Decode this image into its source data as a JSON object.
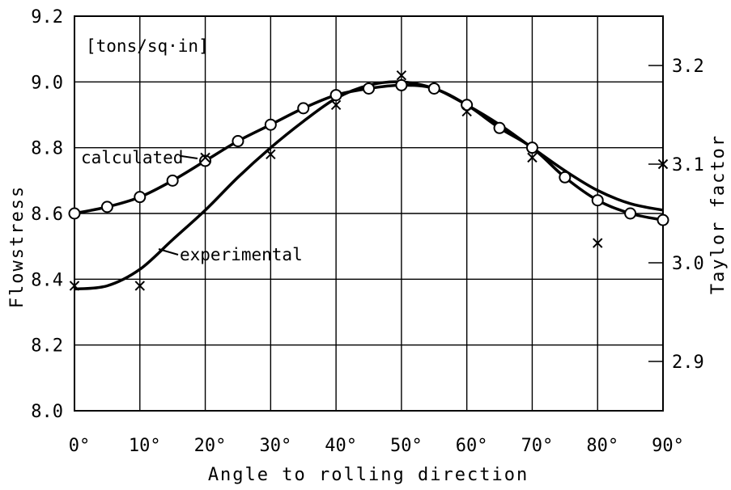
{
  "chart_data": {
    "type": "line",
    "xlabel": "Angle to rolling direction",
    "ylabel": "Flowstress",
    "y2label": "Taylor factor",
    "unit_note": "[tons/sq·in]",
    "xlim": [
      0,
      90
    ],
    "ylim": [
      8.0,
      9.2
    ],
    "y2lim": [
      2.85,
      3.25
    ],
    "x_ticks": [
      0,
      10,
      20,
      30,
      40,
      50,
      60,
      70,
      80,
      90
    ],
    "x_tick_labels": [
      "0°",
      "10°",
      "20°",
      "30°",
      "40°",
      "50°",
      "60°",
      "70°",
      "80°",
      "90°"
    ],
    "y_ticks": [
      8.0,
      8.2,
      8.4,
      8.6,
      8.8,
      9.0,
      9.2
    ],
    "y_tick_labels": [
      "8.0",
      "8.2",
      "8.4",
      "8.6",
      "8.8",
      "9.0",
      "9.2"
    ],
    "y2_ticks": [
      2.9,
      3.0,
      3.1,
      3.2
    ],
    "y2_tick_labels": [
      "2.9",
      "3.0",
      "3.1",
      "3.2"
    ],
    "grid": true,
    "series": [
      {
        "name": "calculated",
        "marker": "circle",
        "x": [
          0,
          5,
          10,
          15,
          20,
          25,
          30,
          35,
          40,
          45,
          50,
          55,
          60,
          65,
          70,
          75,
          80,
          85,
          90
        ],
        "y": [
          8.6,
          8.62,
          8.65,
          8.7,
          8.76,
          8.82,
          8.87,
          8.92,
          8.96,
          8.98,
          8.99,
          8.98,
          8.93,
          8.86,
          8.8,
          8.71,
          8.64,
          8.6,
          8.58
        ]
      },
      {
        "name": "experimental",
        "marker": "cross",
        "x": [
          0,
          10,
          20,
          30,
          40,
          50,
          60,
          70,
          80,
          90
        ],
        "y": [
          8.38,
          8.38,
          8.77,
          8.78,
          8.93,
          9.02,
          8.91,
          8.77,
          8.51,
          8.75
        ]
      }
    ]
  }
}
